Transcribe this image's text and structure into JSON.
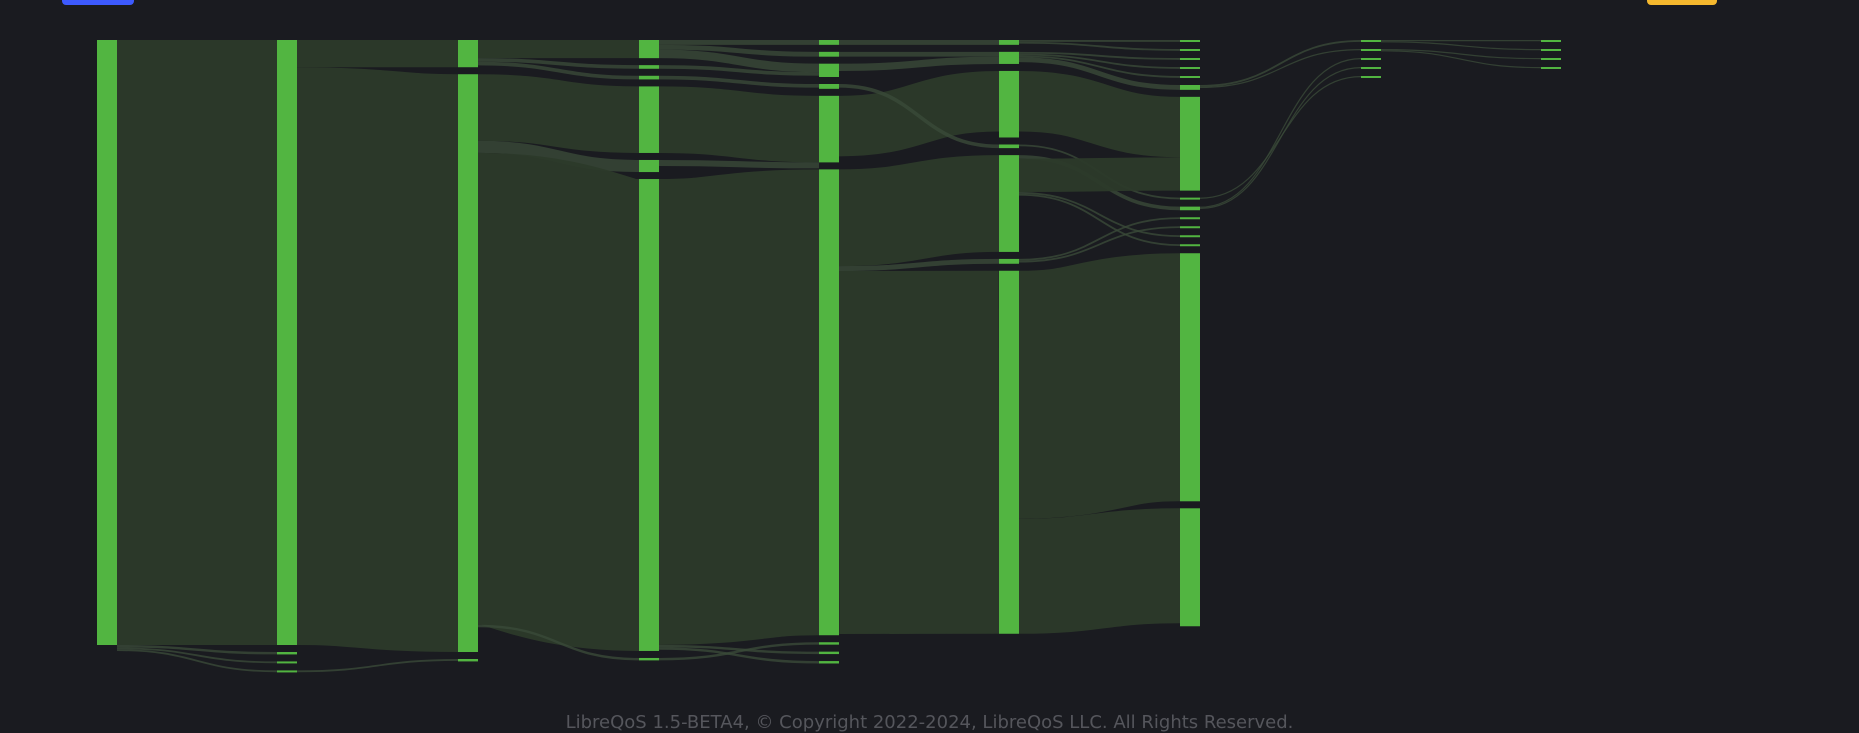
{
  "colors": {
    "background": "#1a1b20",
    "node": "#52b541",
    "link_main": "#2c3a2a",
    "link_minor": "#3a4a38",
    "label": "#c9c9c9",
    "button_left": "#3d5afe",
    "button_right": "#f5b82e",
    "footer": "#55565c"
  },
  "toolbar": {
    "left_button_label": "",
    "right_button_label": ""
  },
  "footer": {
    "text": "LibreQoS 1.5-BETA4, © Copyright 2022-2024, LibreQoS LLC. All Rights Reserved."
  },
  "chart_data": {
    "type": "sankey",
    "title": "",
    "levels": 9,
    "total": 1000,
    "nodes": [
      {
        "id": "n0",
        "level": 0,
        "value": 1000,
        "label": ""
      },
      {
        "id": "n1",
        "level": 1,
        "value": 1000,
        "label": ""
      },
      {
        "id": "n1a",
        "level": 1,
        "value": 4,
        "label": ""
      },
      {
        "id": "n1b",
        "level": 1,
        "value": 3,
        "label": ""
      },
      {
        "id": "n1c",
        "level": 1,
        "value": 3,
        "label": ""
      },
      {
        "id": "n2a",
        "level": 2,
        "value": 45,
        "label": ""
      },
      {
        "id": "n2b",
        "level": 2,
        "value": 955,
        "label": ""
      },
      {
        "id": "n2c",
        "level": 2,
        "value": 4,
        "label": ""
      },
      {
        "id": "n3a",
        "level": 3,
        "value": 30,
        "label": ""
      },
      {
        "id": "n3b",
        "level": 3,
        "value": 6,
        "label": ""
      },
      {
        "id": "n3c",
        "level": 3,
        "value": 6,
        "label": ""
      },
      {
        "id": "n3d",
        "level": 3,
        "value": 110,
        "label": ""
      },
      {
        "id": "n3e",
        "level": 3,
        "value": 20,
        "label": ""
      },
      {
        "id": "n3f",
        "level": 3,
        "value": 780,
        "label": ""
      },
      {
        "id": "n3g",
        "level": 3,
        "value": 4,
        "label": ""
      },
      {
        "id": "n4a",
        "level": 4,
        "value": 8,
        "label": ""
      },
      {
        "id": "n4b",
        "level": 4,
        "value": 8,
        "label": ""
      },
      {
        "id": "n4c",
        "level": 4,
        "value": 22,
        "label": ""
      },
      {
        "id": "n4d",
        "level": 4,
        "value": 8,
        "label": ""
      },
      {
        "id": "n4e",
        "level": 4,
        "value": 110,
        "label": ""
      },
      {
        "id": "n4f",
        "level": 4,
        "value": 770,
        "label": ""
      },
      {
        "id": "n4g",
        "level": 4,
        "value": 4,
        "label": ""
      },
      {
        "id": "n4h",
        "level": 4,
        "value": 4,
        "label": ""
      },
      {
        "id": "n4i",
        "level": 4,
        "value": 4,
        "label": ""
      },
      {
        "id": "n5a",
        "level": 5,
        "value": 8,
        "label": ""
      },
      {
        "id": "n5b",
        "level": 5,
        "value": 20,
        "label": ""
      },
      {
        "id": "n5c",
        "level": 5,
        "value": 110,
        "label": ""
      },
      {
        "id": "n5d",
        "level": 5,
        "value": 6,
        "label": ""
      },
      {
        "id": "n5e",
        "level": 5,
        "value": 160,
        "label": ""
      },
      {
        "id": "n5f",
        "level": 5,
        "value": 8,
        "label": ""
      },
      {
        "id": "n5g",
        "level": 5,
        "value": 600,
        "label": ""
      },
      {
        "id": "n6a",
        "level": 6,
        "value": 3,
        "label": ""
      },
      {
        "id": "n6b",
        "level": 6,
        "value": 3,
        "label": ""
      },
      {
        "id": "n6c",
        "level": 6,
        "value": 3,
        "label": ""
      },
      {
        "id": "n6d",
        "level": 6,
        "value": 3,
        "label": ""
      },
      {
        "id": "n6e",
        "level": 6,
        "value": 3,
        "label": ""
      },
      {
        "id": "n6f",
        "level": 6,
        "value": 8,
        "label": ""
      },
      {
        "id": "n6g",
        "level": 6,
        "value": 155,
        "label": ""
      },
      {
        "id": "n6h",
        "level": 6,
        "value": 3,
        "label": ""
      },
      {
        "id": "n6i",
        "level": 6,
        "value": 6,
        "label": ""
      },
      {
        "id": "n6j",
        "level": 6,
        "value": 3,
        "label": ""
      },
      {
        "id": "n6k",
        "level": 6,
        "value": 3,
        "label": ""
      },
      {
        "id": "n6l",
        "level": 6,
        "value": 3,
        "label": ""
      },
      {
        "id": "n6m",
        "level": 6,
        "value": 3,
        "label": ""
      },
      {
        "id": "n6n",
        "level": 6,
        "value": 410,
        "label": ""
      },
      {
        "id": "n6o",
        "level": 6,
        "value": 195,
        "label": ""
      },
      {
        "id": "n7a",
        "level": 7,
        "value": 3,
        "label": ""
      },
      {
        "id": "n7b",
        "level": 7,
        "value": 2,
        "label": ""
      },
      {
        "id": "n7c",
        "level": 7,
        "value": 2,
        "label": ""
      },
      {
        "id": "n7d",
        "level": 7,
        "value": 2,
        "label": ""
      },
      {
        "id": "n7e",
        "level": 7,
        "value": 2,
        "label": ""
      },
      {
        "id": "n8a",
        "level": 8,
        "value": 2,
        "label": ""
      },
      {
        "id": "n8b",
        "level": 8,
        "value": 2,
        "label": ""
      },
      {
        "id": "n8c",
        "level": 8,
        "value": 2,
        "label": ""
      },
      {
        "id": "n8d",
        "level": 8,
        "value": 2,
        "label": ""
      }
    ],
    "links": [
      {
        "source": "n0",
        "target": "n1",
        "value": 1000
      },
      {
        "source": "n0",
        "target": "n1a",
        "value": 4
      },
      {
        "source": "n0",
        "target": "n1b",
        "value": 3
      },
      {
        "source": "n0",
        "target": "n1c",
        "value": 3
      },
      {
        "source": "n1",
        "target": "n2a",
        "value": 45
      },
      {
        "source": "n1",
        "target": "n2b",
        "value": 955
      },
      {
        "source": "n1c",
        "target": "n2c",
        "value": 3
      },
      {
        "source": "n2a",
        "target": "n3a",
        "value": 30
      },
      {
        "source": "n2a",
        "target": "n3b",
        "value": 6
      },
      {
        "source": "n2a",
        "target": "n3c",
        "value": 6
      },
      {
        "source": "n2b",
        "target": "n3d",
        "value": 110
      },
      {
        "source": "n2b",
        "target": "n3e",
        "value": 20
      },
      {
        "source": "n2b",
        "target": "n3f",
        "value": 780
      },
      {
        "source": "n2b",
        "target": "n3g",
        "value": 4
      },
      {
        "source": "n3a",
        "target": "n4a",
        "value": 8
      },
      {
        "source": "n3a",
        "target": "n4b",
        "value": 8
      },
      {
        "source": "n3a",
        "target": "n4c",
        "value": 14
      },
      {
        "source": "n3b",
        "target": "n4c",
        "value": 6
      },
      {
        "source": "n3c",
        "target": "n4d",
        "value": 6
      },
      {
        "source": "n3d",
        "target": "n4e",
        "value": 110
      },
      {
        "source": "n3e",
        "target": "n4e",
        "value": 10
      },
      {
        "source": "n3f",
        "target": "n4f",
        "value": 770
      },
      {
        "source": "n3g",
        "target": "n4g",
        "value": 4
      },
      {
        "source": "n3f",
        "target": "n4h",
        "value": 4
      },
      {
        "source": "n3f",
        "target": "n4i",
        "value": 4
      },
      {
        "source": "n4a",
        "target": "n5a",
        "value": 8
      },
      {
        "source": "n4b",
        "target": "n5b",
        "value": 8
      },
      {
        "source": "n4c",
        "target": "n5b",
        "value": 12
      },
      {
        "source": "n4e",
        "target": "n5c",
        "value": 100
      },
      {
        "source": "n4d",
        "target": "n5d",
        "value": 6
      },
      {
        "source": "n4f",
        "target": "n5e",
        "value": 160
      },
      {
        "source": "n4f",
        "target": "n5f",
        "value": 8
      },
      {
        "source": "n4f",
        "target": "n5g",
        "value": 600
      },
      {
        "source": "n5a",
        "target": "n6a",
        "value": 3
      },
      {
        "source": "n5a",
        "target": "n6b",
        "value": 3
      },
      {
        "source": "n5b",
        "target": "n6c",
        "value": 3
      },
      {
        "source": "n5b",
        "target": "n6d",
        "value": 3
      },
      {
        "source": "n5b",
        "target": "n6e",
        "value": 3
      },
      {
        "source": "n5b",
        "target": "n6f",
        "value": 8
      },
      {
        "source": "n5c",
        "target": "n6g",
        "value": 100
      },
      {
        "source": "n5d",
        "target": "n6h",
        "value": 3
      },
      {
        "source": "n5e",
        "target": "n6i",
        "value": 6
      },
      {
        "source": "n5e",
        "target": "n6g",
        "value": 55
      },
      {
        "source": "n5f",
        "target": "n6j",
        "value": 3
      },
      {
        "source": "n5f",
        "target": "n6k",
        "value": 3
      },
      {
        "source": "n5e",
        "target": "n6l",
        "value": 3
      },
      {
        "source": "n5e",
        "target": "n6m",
        "value": 3
      },
      {
        "source": "n5g",
        "target": "n6n",
        "value": 410
      },
      {
        "source": "n5g",
        "target": "n6o",
        "value": 190
      },
      {
        "source": "n6f",
        "target": "n7a",
        "value": 3
      },
      {
        "source": "n6f",
        "target": "n7b",
        "value": 2
      },
      {
        "source": "n6i",
        "target": "n7c",
        "value": 2
      },
      {
        "source": "n6i",
        "target": "n7d",
        "value": 2
      },
      {
        "source": "n6h",
        "target": "n7e",
        "value": 2
      },
      {
        "source": "n7a",
        "target": "n8a",
        "value": 2
      },
      {
        "source": "n7a",
        "target": "n8b",
        "value": 2
      },
      {
        "source": "n7b",
        "target": "n8c",
        "value": 2
      },
      {
        "source": "n7b",
        "target": "n8d",
        "value": 2
      }
    ]
  }
}
